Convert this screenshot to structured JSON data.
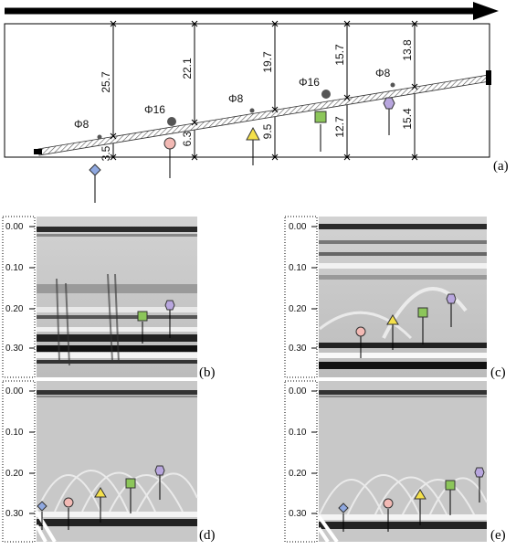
{
  "schematic": {
    "label": "(a)",
    "bars": [
      {
        "name": "Φ8"
      },
      {
        "name": "Φ16"
      },
      {
        "name": "Φ8"
      },
      {
        "name": "Φ16"
      },
      {
        "name": "Φ8"
      }
    ],
    "depths_top": [
      "25.7",
      "22.1",
      "19.7",
      "15.7",
      "13.8"
    ],
    "depths_bottom": [
      "3.5",
      "6.3",
      "9.5",
      "12.7",
      "15.4"
    ]
  },
  "panels": [
    {
      "label": "(b)",
      "ticks": [
        "0.00",
        "0.10",
        "0.20",
        "0.30"
      ]
    },
    {
      "label": "(c)",
      "ticks": [
        "0.00",
        "0.10",
        "0.20",
        "0.30"
      ]
    },
    {
      "label": "(d)",
      "ticks": [
        "0.00",
        "0.10",
        "0.20",
        "0.30"
      ]
    },
    {
      "label": "(e)",
      "ticks": [
        "0.00",
        "0.10",
        "0.20",
        "0.30"
      ]
    }
  ],
  "colors": {
    "diamond": "#8fa8e0",
    "circle": "#f2b9b4",
    "triangle": "#f4e04a",
    "square": "#8cc65a",
    "hexagon": "#b8a6de"
  }
}
